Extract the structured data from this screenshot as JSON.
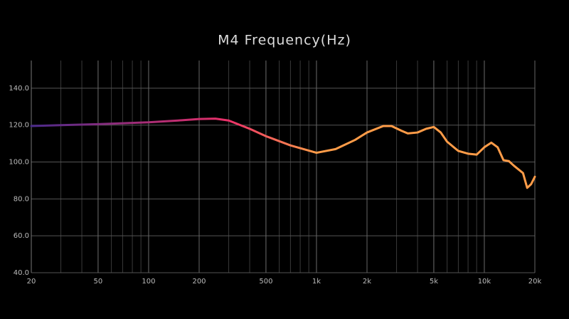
{
  "chart_data": {
    "type": "line",
    "title": "M4  Frequency(Hz)",
    "x": [
      20,
      30,
      50,
      100,
      150,
      200,
      250,
      300,
      400,
      500,
      700,
      1000,
      1300,
      1700,
      2000,
      2500,
      2800,
      3200,
      3500,
      4000,
      4500,
      5000,
      5500,
      6000,
      7000,
      8000,
      9000,
      10000,
      11000,
      12000,
      13000,
      14000,
      15000,
      17000,
      18000,
      19000,
      20000
    ],
    "values": [
      119.5,
      120,
      120.5,
      121.5,
      122.5,
      123.3,
      123.5,
      122.5,
      118,
      114,
      109,
      105,
      107,
      112,
      116,
      119.5,
      119.5,
      117,
      115.5,
      116,
      118,
      119,
      116,
      111,
      106,
      104.5,
      104,
      108,
      110.5,
      108,
      101,
      100.5,
      98,
      94,
      86,
      88,
      92
    ],
    "log_x": true,
    "xlim": [
      20,
      20000
    ],
    "ylim": [
      40,
      155
    ],
    "xticks": [
      20,
      50,
      100,
      200,
      500,
      {
        "value": 1000,
        "label": "1k"
      },
      {
        "value": 2000,
        "label": "2k"
      },
      {
        "value": 5000,
        "label": "5k"
      },
      {
        "value": 10000,
        "label": "10k"
      },
      {
        "value": 20000,
        "label": "20k"
      }
    ],
    "yticks": [
      {
        "value": 40,
        "label": "40.0"
      },
      {
        "value": 60,
        "label": "60.0"
      },
      {
        "value": 80,
        "label": "80.0"
      },
      {
        "value": 100,
        "label": "100.0"
      },
      {
        "value": 120,
        "label": "120.0"
      },
      {
        "value": 140,
        "label": "140.0"
      }
    ],
    "grid": true,
    "minor_grid": true,
    "gradient": [
      {
        "at": 20,
        "color": "#4a2a8a"
      },
      {
        "at": 300,
        "color": "#ea3068"
      },
      {
        "at": 1000,
        "color": "#ff9c48"
      }
    ]
  }
}
